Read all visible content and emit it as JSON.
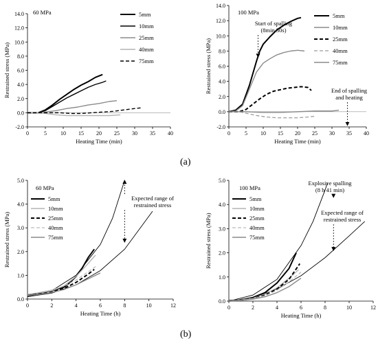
{
  "captions": {
    "a": "(a)",
    "b": "(b)"
  },
  "style": {
    "series_colors": {
      "5mm": "#000000",
      "10mm": "#000000",
      "25mm": "#000000",
      "40mm": "#a8a8a8",
      "75mm": "#7a7a7a"
    }
  },
  "chart_data": [
    {
      "type": "line",
      "panel": "a-left",
      "title": "60 MPa",
      "xlabel": "Heating Time (min)",
      "ylabel": "Restrained stress (MPa)",
      "xlim": [
        0,
        40
      ],
      "ylim": [
        -2.0,
        14.0
      ],
      "xticks": [
        0,
        5,
        10,
        15,
        20,
        25,
        30,
        35,
        40
      ],
      "yticks": [
        -2.0,
        0.0,
        2.0,
        4.0,
        6.0,
        8.0,
        10.0,
        12.0,
        14.0
      ],
      "ytick_labels": [
        "-2.0",
        "0.0",
        "2.0",
        "4.0",
        "6.0",
        "8.0",
        "10.0",
        "12.0",
        "14.0"
      ],
      "grid": false,
      "legend_position": "top-right",
      "series": [
        {
          "name": "5mm",
          "style": "solid-thick",
          "x": [
            0,
            3,
            5,
            7,
            9,
            11,
            13,
            15,
            17,
            19,
            21
          ],
          "y": [
            0,
            0,
            0.4,
            1.1,
            1.9,
            2.6,
            3.3,
            3.9,
            4.4,
            5.0,
            5.4
          ]
        },
        {
          "name": "10mm",
          "style": "solid",
          "x": [
            0,
            3,
            5,
            7,
            9,
            11,
            13,
            15,
            17,
            19,
            21,
            22
          ],
          "y": [
            0,
            0,
            0.3,
            0.9,
            1.5,
            2.1,
            2.6,
            3.1,
            3.6,
            4.0,
            4.3,
            4.5
          ]
        },
        {
          "name": "25mm",
          "style": "solid-gray",
          "x": [
            0,
            3,
            5,
            8,
            11,
            14,
            17,
            20,
            23,
            25
          ],
          "y": [
            0,
            0,
            0.1,
            0.3,
            0.6,
            0.8,
            1.1,
            1.3,
            1.6,
            1.7
          ]
        },
        {
          "name": "40mm",
          "style": "solid-lightgray",
          "x": [
            0,
            3,
            5,
            8,
            11,
            14,
            17,
            20,
            23,
            26
          ],
          "y": [
            0,
            0,
            -0.1,
            -0.3,
            -0.4,
            -0.4,
            -0.4,
            -0.4,
            -0.4,
            -0.3
          ]
        },
        {
          "name": "75mm",
          "style": "dashed",
          "x": [
            0,
            3,
            6,
            9,
            12,
            15,
            18,
            21,
            24,
            27,
            30,
            32
          ],
          "y": [
            0,
            0,
            0,
            0,
            -0.1,
            -0.1,
            0,
            0.1,
            0.2,
            0.4,
            0.6,
            0.7
          ]
        }
      ]
    },
    {
      "type": "line",
      "panel": "a-right",
      "title": "100 MPa",
      "xlabel": "Heating Time (min)",
      "ylabel": "Restrained stress (MPa)",
      "xlim": [
        0,
        40
      ],
      "ylim": [
        -2.0,
        14.0
      ],
      "xticks": [
        0,
        5,
        10,
        15,
        20,
        25,
        30,
        35,
        40
      ],
      "yticks": [
        -2.0,
        0.0,
        2.0,
        4.0,
        6.0,
        8.0,
        10.0,
        12.0,
        14.0
      ],
      "ytick_labels": [
        "-2.0",
        "0.0",
        "2.0",
        "4.0",
        "6.0",
        "8.0",
        "10.0",
        "12.0",
        "14.0"
      ],
      "grid": false,
      "legend_position": "top-right",
      "series": [
        {
          "name": "5mm",
          "style": "solid-thick",
          "x": [
            0,
            2,
            4,
            6,
            8,
            9,
            10,
            12,
            14,
            16,
            18,
            20,
            21
          ],
          "y": [
            0,
            0.2,
            1.0,
            3.5,
            6.6,
            8.0,
            8.9,
            9.9,
            10.8,
            11.4,
            11.9,
            12.3,
            12.4
          ]
        },
        {
          "name": "10mm",
          "style": "solid-gray",
          "x": [
            0,
            2,
            4,
            6,
            8,
            10,
            12,
            14,
            16,
            18,
            20,
            22
          ],
          "y": [
            0,
            0.1,
            0.8,
            3.0,
            5.2,
            6.4,
            7.0,
            7.5,
            7.8,
            8.0,
            8.1,
            8.0
          ]
        },
        {
          "name": "25mm",
          "style": "dashed-thick",
          "x": [
            0,
            3,
            5,
            7,
            9,
            11,
            13,
            15,
            17,
            19,
            21,
            23,
            24
          ],
          "y": [
            0,
            0,
            0.3,
            1.0,
            1.7,
            2.3,
            2.7,
            2.9,
            3.1,
            3.2,
            3.3,
            3.2,
            2.8
          ]
        },
        {
          "name": "40mm",
          "style": "dashed-gray",
          "x": [
            0,
            3,
            5,
            8,
            11,
            14,
            17,
            20,
            23,
            25
          ],
          "y": [
            0,
            0,
            -0.2,
            -0.5,
            -0.7,
            -0.8,
            -0.8,
            -0.8,
            -0.7,
            -0.6
          ]
        },
        {
          "name": "75mm",
          "style": "solid-gray",
          "x": [
            0,
            5,
            10,
            15,
            20,
            25,
            30,
            32
          ],
          "y": [
            0,
            0,
            -0.1,
            -0.1,
            0,
            0.1,
            0.1,
            0.2
          ]
        }
      ],
      "annotations": [
        {
          "text": [
            "Start of spalling",
            "(8min 30s)"
          ],
          "arrow_to": {
            "x": 8.5,
            "y": 7.2
          }
        },
        {
          "text": [
            "End of spalling",
            "and heating"
          ],
          "arrow_to": {
            "x": 34.5,
            "y": -1.8
          }
        }
      ]
    },
    {
      "type": "line",
      "panel": "b-left",
      "title": "60 MPa",
      "xlabel": "Heating Time (h)",
      "ylabel": "Restrained stress (MPa)",
      "xlim": [
        0,
        12
      ],
      "ylim": [
        0.0,
        5.0
      ],
      "xticks": [
        0,
        2,
        4,
        6,
        8,
        10,
        12
      ],
      "yticks": [
        0.0,
        1.0,
        2.0,
        3.0,
        4.0,
        5.0
      ],
      "ytick_labels": [
        "0.0",
        "1.0",
        "2.0",
        "3.0",
        "4.0",
        "5.0"
      ],
      "grid": false,
      "legend_position": "top-left",
      "series": [
        {
          "name": "5mm",
          "style": "solid-thick",
          "x": [
            0,
            1,
            2,
            3,
            3.5,
            4,
            4.5,
            5,
            5.5
          ],
          "y": [
            0.18,
            0.25,
            0.35,
            0.5,
            0.7,
            0.95,
            1.3,
            1.75,
            2.1
          ]
        },
        {
          "name": "10mm",
          "style": "solid-lightgray",
          "x": [
            0,
            1,
            2,
            3,
            4,
            5,
            5.6
          ],
          "y": [
            0.2,
            0.25,
            0.35,
            0.55,
            0.95,
            1.5,
            1.85
          ]
        },
        {
          "name": "25mm",
          "style": "dashed-thick",
          "x": [
            0,
            1,
            2,
            3,
            4,
            5,
            5.5
          ],
          "y": [
            0.15,
            0.22,
            0.3,
            0.45,
            0.7,
            1.05,
            1.25
          ]
        },
        {
          "name": "40mm",
          "style": "dashed-lightgray",
          "x": [
            0,
            1,
            2,
            3,
            4,
            5,
            5.7
          ],
          "y": [
            0.2,
            0.28,
            0.38,
            0.55,
            0.8,
            1.15,
            1.4
          ]
        },
        {
          "name": "75mm",
          "style": "solid-gray",
          "x": [
            0,
            1,
            2,
            3,
            4,
            5,
            6
          ],
          "y": [
            0.15,
            0.2,
            0.28,
            0.4,
            0.6,
            0.85,
            1.1
          ]
        }
      ],
      "envelope": [
        {
          "x": [
            0,
            2,
            4,
            6,
            7,
            8
          ],
          "y": [
            0.1,
            0.35,
            1.0,
            2.3,
            3.4,
            5.0
          ]
        },
        {
          "x": [
            0,
            2,
            4,
            6,
            8,
            10.3
          ],
          "y": [
            0.1,
            0.25,
            0.6,
            1.2,
            2.1,
            3.7
          ]
        }
      ],
      "annotations": [
        {
          "text": [
            "Expected range of",
            "restrained stress"
          ],
          "arrows_to": [
            {
              "x": 8.0,
              "y": 5.0
            },
            {
              "x": 8.0,
              "y": 2.4
            }
          ]
        }
      ]
    },
    {
      "type": "line",
      "panel": "b-right",
      "title": "100 MPa",
      "xlabel": "Heating Time (h)",
      "ylabel": "Restrained stress (MPa)",
      "xlim": [
        0,
        12
      ],
      "ylim": [
        0.0,
        5.0
      ],
      "xticks": [
        0,
        2,
        4,
        6,
        8,
        10,
        12
      ],
      "yticks": [
        0.0,
        1.0,
        2.0,
        3.0,
        4.0,
        5.0
      ],
      "ytick_labels": [
        "0.0",
        "1.0",
        "2.0",
        "3.0",
        "4.0",
        "5.0"
      ],
      "grid": false,
      "legend_position": "top-left",
      "series": [
        {
          "name": "5mm",
          "style": "solid-thick",
          "x": [
            0,
            1,
            2,
            3,
            4,
            5,
            5.6
          ],
          "y": [
            0.02,
            0.05,
            0.15,
            0.35,
            0.75,
            1.35,
            2.0
          ]
        },
        {
          "name": "10mm",
          "style": "solid-lightgray",
          "x": [
            0,
            1,
            2,
            3,
            4,
            5,
            5.8
          ],
          "y": [
            0.02,
            0.05,
            0.12,
            0.28,
            0.55,
            0.95,
            1.3
          ]
        },
        {
          "name": "25mm",
          "style": "dashed-thick",
          "x": [
            0,
            1,
            2,
            3,
            4,
            5,
            5.9
          ],
          "y": [
            0.02,
            0.04,
            0.1,
            0.25,
            0.5,
            0.9,
            1.55
          ]
        },
        {
          "name": "40mm",
          "style": "dashed-lightgray",
          "x": [
            0,
            1,
            2,
            3,
            4,
            5,
            6
          ],
          "y": [
            0.02,
            0.04,
            0.1,
            0.22,
            0.45,
            0.8,
            1.2
          ]
        },
        {
          "name": "75mm",
          "style": "solid-gray",
          "x": [
            0,
            1,
            2,
            3,
            4,
            5,
            6
          ],
          "y": [
            0.02,
            0.03,
            0.08,
            0.18,
            0.35,
            0.6,
            0.95
          ]
        }
      ],
      "envelope": [
        {
          "x": [
            0,
            2,
            4,
            6,
            7,
            8,
            8.2
          ],
          "y": [
            0,
            0.25,
            0.9,
            2.3,
            3.3,
            4.6,
            4.9
          ]
        },
        {
          "x": [
            0,
            2,
            4,
            6,
            8,
            10,
            11.3
          ],
          "y": [
            0,
            0.15,
            0.5,
            1.05,
            1.8,
            2.7,
            3.3
          ]
        }
      ],
      "annotations": [
        {
          "text": [
            "Explosive spalling",
            "(8 h 41 min)"
          ],
          "arrow_to": {
            "x": 8.7,
            "y": 4.3
          }
        },
        {
          "text": [
            "Expected range of",
            "restrained stress"
          ],
          "arrow_to": {
            "x": 8.7,
            "y": 2.1
          }
        }
      ]
    }
  ]
}
